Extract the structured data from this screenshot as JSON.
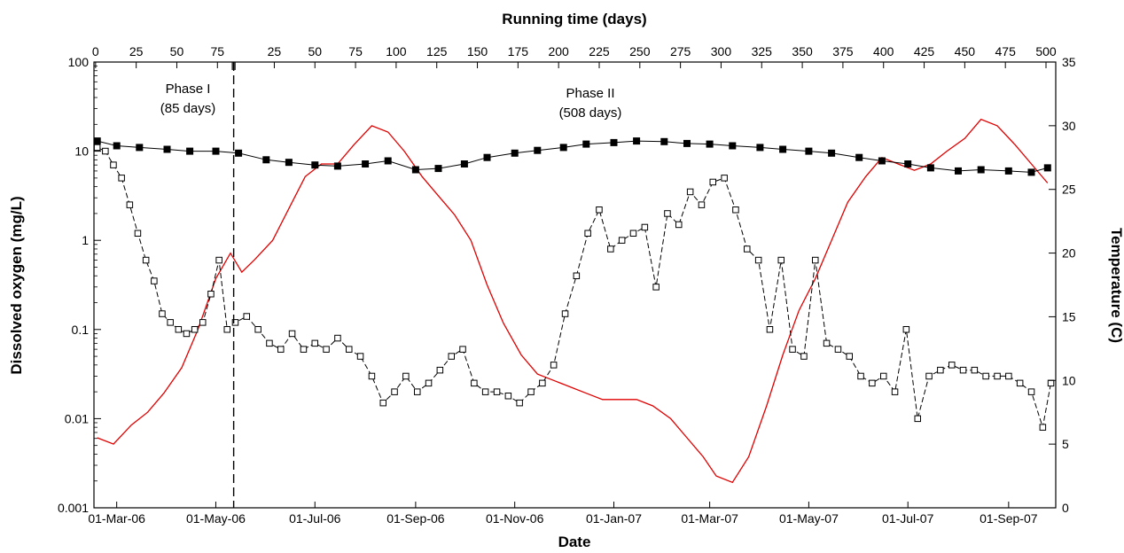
{
  "chart_data": {
    "type": "line",
    "title": "",
    "xlabel": "Date",
    "x2label": "Running time (days)",
    "ylabel": "Dissolved oxygen (mg/L)",
    "y2label": "Temperature (C)",
    "yscale": "log",
    "ylim": [
      0.001,
      100
    ],
    "y2lim": [
      0,
      35
    ],
    "grid": false,
    "legend": "none",
    "date_ticks": [
      {
        "label": "01-Mar-06",
        "date": "2006-03-01"
      },
      {
        "label": "01-May-06",
        "date": "2006-05-01"
      },
      {
        "label": "01-Jul-06",
        "date": "2006-07-01"
      },
      {
        "label": "01-Sep-06",
        "date": "2006-09-01"
      },
      {
        "label": "01-Nov-06",
        "date": "2006-11-01"
      },
      {
        "label": "01-Jan-07",
        "date": "2007-01-01"
      },
      {
        "label": "01-Mar-07",
        "date": "2007-03-01"
      },
      {
        "label": "01-May-07",
        "date": "2007-05-01"
      },
      {
        "label": "01-Jul-07",
        "date": "2007-07-01"
      },
      {
        "label": "01-Sep-07",
        "date": "2007-09-01"
      }
    ],
    "y_ticks": [
      "0.001",
      "0.01",
      "0.1",
      "1",
      "10",
      "100"
    ],
    "y2_ticks": [
      "0",
      "5",
      "10",
      "15",
      "20",
      "25",
      "30",
      "35"
    ],
    "phase1_ticks": [
      "0",
      "25",
      "50",
      "75"
    ],
    "phase2_ticks": [
      "25",
      "50",
      "75",
      "100",
      "125",
      "150",
      "175",
      "200",
      "225",
      "250",
      "275",
      "300",
      "325",
      "350",
      "375",
      "400",
      "425",
      "450",
      "475",
      "500"
    ],
    "phases": [
      {
        "label": "Phase I",
        "sublabel": "(85 days)",
        "start": "2006-02-16"
      },
      {
        "label": "Phase II",
        "sublabel": "(508 days)",
        "start": "2006-05-12"
      }
    ],
    "divider_date": "2006-05-12",
    "colors": {
      "temperature": "#e00000",
      "influent": "#000000",
      "effluent": "#000000"
    },
    "series": [
      {
        "role": "influent_do",
        "marker": "filled-square",
        "x": [
          "2006-02-17",
          "2006-03-01",
          "2006-03-15",
          "2006-04-01",
          "2006-04-15",
          "2006-05-01",
          "2006-05-15",
          "2006-06-01",
          "2006-06-15",
          "2006-07-01",
          "2006-07-15",
          "2006-08-01",
          "2006-08-15",
          "2006-09-01",
          "2006-09-15",
          "2006-10-01",
          "2006-10-15",
          "2006-11-01",
          "2006-11-15",
          "2006-12-01",
          "2006-12-15",
          "2007-01-01",
          "2007-01-15",
          "2007-02-01",
          "2007-02-15",
          "2007-03-01",
          "2007-03-15",
          "2007-04-01",
          "2007-04-15",
          "2007-05-01",
          "2007-05-15",
          "2007-06-01",
          "2007-06-15",
          "2007-07-01",
          "2007-07-15",
          "2007-08-01",
          "2007-08-15",
          "2007-09-01",
          "2007-09-15",
          "2007-09-25"
        ],
        "y": [
          13,
          11.5,
          11,
          10.5,
          10,
          10,
          9.5,
          8,
          7.5,
          7,
          6.8,
          7.2,
          7.8,
          6.2,
          6.4,
          7.2,
          8.5,
          9.5,
          10.2,
          11,
          12,
          12.5,
          13,
          12.8,
          12.2,
          12,
          11.5,
          11,
          10.5,
          10,
          9.5,
          8.5,
          7.8,
          7.2,
          6.5,
          6,
          6.2,
          6,
          5.8,
          6.5
        ]
      },
      {
        "role": "effluent_do",
        "marker": "open-square",
        "x": [
          "2006-02-17",
          "2006-02-22",
          "2006-02-27",
          "2006-03-04",
          "2006-03-09",
          "2006-03-14",
          "2006-03-19",
          "2006-03-24",
          "2006-03-29",
          "2006-04-03",
          "2006-04-08",
          "2006-04-13",
          "2006-04-18",
          "2006-04-23",
          "2006-04-28",
          "2006-05-03",
          "2006-05-08",
          "2006-05-13",
          "2006-05-20",
          "2006-05-27",
          "2006-06-03",
          "2006-06-10",
          "2006-06-17",
          "2006-06-24",
          "2006-07-01",
          "2006-07-08",
          "2006-07-15",
          "2006-07-22",
          "2006-07-29",
          "2006-08-05",
          "2006-08-12",
          "2006-08-19",
          "2006-08-26",
          "2006-09-02",
          "2006-09-09",
          "2006-09-16",
          "2006-09-23",
          "2006-09-30",
          "2006-10-07",
          "2006-10-14",
          "2006-10-21",
          "2006-10-28",
          "2006-11-04",
          "2006-11-11",
          "2006-11-18",
          "2006-11-25",
          "2006-12-02",
          "2006-12-09",
          "2006-12-16",
          "2006-12-23",
          "2006-12-30",
          "2007-01-06",
          "2007-01-13",
          "2007-01-20",
          "2007-01-27",
          "2007-02-03",
          "2007-02-10",
          "2007-02-17",
          "2007-02-24",
          "2007-03-03",
          "2007-03-10",
          "2007-03-17",
          "2007-03-24",
          "2007-03-31",
          "2007-04-07",
          "2007-04-14",
          "2007-04-21",
          "2007-04-28",
          "2007-05-05",
          "2007-05-12",
          "2007-05-19",
          "2007-05-26",
          "2007-06-02",
          "2007-06-09",
          "2007-06-16",
          "2007-06-23",
          "2007-06-30",
          "2007-07-07",
          "2007-07-14",
          "2007-07-21",
          "2007-07-28",
          "2007-08-04",
          "2007-08-11",
          "2007-08-18",
          "2007-08-25",
          "2007-09-01",
          "2007-09-08",
          "2007-09-15",
          "2007-09-22",
          "2007-09-27"
        ],
        "y": [
          11,
          10,
          7,
          5,
          2.5,
          1.2,
          0.6,
          0.35,
          0.15,
          0.12,
          0.1,
          0.09,
          0.1,
          0.12,
          0.25,
          0.6,
          0.1,
          0.12,
          0.14,
          0.1,
          0.07,
          0.06,
          0.09,
          0.06,
          0.07,
          0.06,
          0.08,
          0.06,
          0.05,
          0.03,
          0.015,
          0.02,
          0.03,
          0.02,
          0.025,
          0.035,
          0.05,
          0.06,
          0.025,
          0.02,
          0.02,
          0.018,
          0.015,
          0.02,
          0.025,
          0.04,
          0.15,
          0.4,
          1.2,
          2.2,
          0.8,
          1.0,
          1.2,
          1.4,
          0.3,
          2.0,
          1.5,
          3.5,
          2.5,
          4.5,
          5.0,
          2.2,
          0.8,
          0.6,
          0.1,
          0.6,
          0.06,
          0.05,
          0.6,
          0.07,
          0.06,
          0.05,
          0.03,
          0.025,
          0.03,
          0.02,
          0.1,
          0.01,
          0.03,
          0.035,
          0.04,
          0.035,
          0.035,
          0.03,
          0.03,
          0.03,
          0.025,
          0.02,
          0.008,
          0.025
        ]
      },
      {
        "role": "temperature",
        "marker": "none",
        "axis": "right",
        "x": [
          "2006-02-17",
          "2006-02-27",
          "2006-03-10",
          "2006-03-20",
          "2006-03-30",
          "2006-04-10",
          "2006-04-20",
          "2006-05-01",
          "2006-05-10",
          "2006-05-17",
          "2006-05-25",
          "2006-06-05",
          "2006-06-15",
          "2006-06-25",
          "2006-07-05",
          "2006-07-15",
          "2006-07-25",
          "2006-08-05",
          "2006-08-15",
          "2006-08-25",
          "2006-09-05",
          "2006-09-15",
          "2006-09-25",
          "2006-10-05",
          "2006-10-15",
          "2006-10-25",
          "2006-11-05",
          "2006-11-15",
          "2006-11-25",
          "2006-12-05",
          "2006-12-15",
          "2006-12-25",
          "2007-01-05",
          "2007-01-15",
          "2007-01-25",
          "2007-02-05",
          "2007-02-15",
          "2007-02-25",
          "2007-03-05",
          "2007-03-15",
          "2007-03-25",
          "2007-04-05",
          "2007-04-15",
          "2007-04-25",
          "2007-05-05",
          "2007-05-15",
          "2007-05-25",
          "2007-06-05",
          "2007-06-15",
          "2007-06-25",
          "2007-07-05",
          "2007-07-15",
          "2007-07-25",
          "2007-08-05",
          "2007-08-15",
          "2007-08-25",
          "2007-09-05",
          "2007-09-15",
          "2007-09-25"
        ],
        "y": [
          5.5,
          5.0,
          6.5,
          7.5,
          9.0,
          11.0,
          14.0,
          18.0,
          20.0,
          18.5,
          19.5,
          21.0,
          23.5,
          26.0,
          27.0,
          27.0,
          28.5,
          30.0,
          29.5,
          28.0,
          26.0,
          24.5,
          23.0,
          21.0,
          17.5,
          14.5,
          12.0,
          10.5,
          10.0,
          9.5,
          9.0,
          8.5,
          8.5,
          8.5,
          8.0,
          7.0,
          5.5,
          4.0,
          2.5,
          2.0,
          4.0,
          8.0,
          12.0,
          15.5,
          18.0,
          21.0,
          24.0,
          26.0,
          27.5,
          27.0,
          26.5,
          27.0,
          28.0,
          29.0,
          30.5,
          30.0,
          28.5,
          27.0,
          25.5
        ]
      }
    ]
  }
}
